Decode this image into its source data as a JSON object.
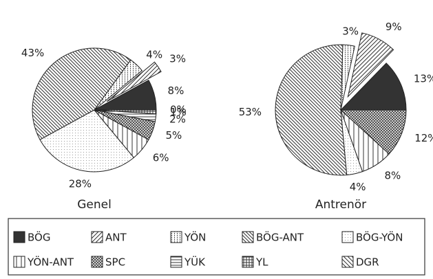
{
  "chart_data": {
    "type": "pie",
    "categories": [
      "BÖG",
      "ANT",
      "YÖN",
      "BÖG-ANT",
      "BÖG-YÖN",
      "YÖN-ANT",
      "SPC",
      "YÜK",
      "YL",
      "DGR"
    ],
    "patterns": [
      "solid",
      "diag-up",
      "vertical-dots",
      "diag-cross",
      "dots",
      "vertical",
      "crosshatch",
      "horizontal",
      "grid",
      "diag-down"
    ],
    "exploded": "ANT",
    "series": [
      {
        "name": "Genel",
        "values": [
          8,
          3,
          4,
          43,
          28,
          6,
          5,
          2,
          1,
          0
        ],
        "value_labels": [
          "8%",
          "3%",
          "4%",
          "43%",
          "28%",
          "6%",
          "5%",
          "2%",
          "1%",
          "0%"
        ]
      },
      {
        "name": "Antrenör",
        "values": [
          13,
          9,
          3,
          53,
          4,
          8,
          12,
          null,
          null,
          null
        ],
        "value_labels": [
          "13%",
          "9%",
          "3%",
          "53%",
          "4%",
          "8%",
          "12%",
          null,
          null,
          null
        ]
      }
    ]
  }
}
